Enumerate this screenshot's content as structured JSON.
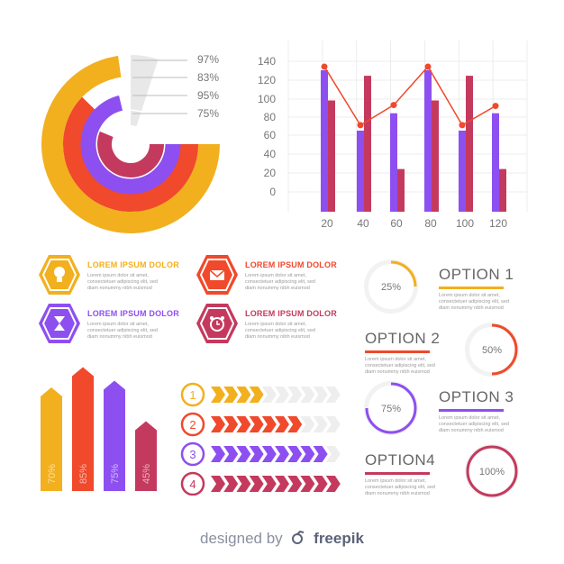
{
  "colors": {
    "yellow": "#f2b01e",
    "red": "#f0492b",
    "purple": "#8e4ff0",
    "maroon": "#c43a5e",
    "grey": "#e8e8e8"
  },
  "radial_chart": {
    "rings": [
      {
        "label": "97%",
        "value": 97,
        "color": "#f2b01e"
      },
      {
        "label": "83%",
        "value": 83,
        "color": "#f0492b"
      },
      {
        "label": "95%",
        "value": 95,
        "color": "#8e4ff0"
      },
      {
        "label": "75%",
        "value": 75,
        "color": "#c43a5e"
      }
    ]
  },
  "chart_data": {
    "type": "bar",
    "categories": [
      "20",
      "40",
      "60",
      "80",
      "100",
      "120"
    ],
    "series": [
      {
        "color": "#8e4ff0",
        "values": [
          133,
          67,
          86,
          133,
          67,
          86
        ]
      },
      {
        "color": "#c43a5e",
        "values": [
          100,
          127,
          25,
          100,
          127,
          25
        ]
      }
    ],
    "line": {
      "color": "#f0492b",
      "values": [
        137,
        73,
        95,
        137,
        73,
        94
      ]
    },
    "yticks": [
      "140",
      "120",
      "100",
      "80",
      "60",
      "40",
      "20",
      "0"
    ],
    "ylim": [
      0,
      150
    ]
  },
  "hex_items": [
    {
      "heading": "LOREM IPSUM DOLOR",
      "icon": "lightbulb-icon",
      "color": "#f2b01e",
      "lines": [
        "Lorem ipsum dolor sit amet,",
        "consectetuer adipiscing elit, sed",
        "diam nonummy nibh euismod"
      ]
    },
    {
      "heading": "LOREM IPSUM DOLOR",
      "icon": "mail-icon",
      "color": "#f0492b",
      "lines": [
        "Lorem ipsum dolor sit amet,",
        "consectetuer adipiscing elit, sed",
        "diam nonummy nibh euismod"
      ]
    },
    {
      "heading": "LOREM IPSUM DOLOR",
      "icon": "hourglass-icon",
      "color": "#8e4ff0",
      "lines": [
        "Lorem ipsum dolor sit amet,",
        "consectetuer adipiscing elit, sed",
        "diam nonummy nibh euismod"
      ]
    },
    {
      "heading": "LOREM IPSUM DOLOR",
      "icon": "alarm-clock-icon",
      "color": "#c43a5e",
      "lines": [
        "Lorem ipsum dolor sit amet,",
        "consectetuer adipiscing elit, sed",
        "diam nonummy nibh euismod"
      ]
    }
  ],
  "arrow_bars": [
    {
      "label": "70%",
      "value": 70,
      "color": "#f2b01e"
    },
    {
      "label": "85%",
      "value": 85,
      "color": "#f0492b"
    },
    {
      "label": "75%",
      "value": 75,
      "color": "#8e4ff0"
    },
    {
      "label": "45%",
      "value": 45,
      "color": "#c43a5e"
    }
  ],
  "steps": [
    {
      "num": "1",
      "filled": 4,
      "color": "#f2b01e"
    },
    {
      "num": "2",
      "filled": 7,
      "color": "#f0492b"
    },
    {
      "num": "3",
      "filled": 9,
      "color": "#8e4ff0"
    },
    {
      "num": "4",
      "filled": 10,
      "color": "#c43a5e"
    }
  ],
  "options": [
    {
      "title": "OPTION 1",
      "pct": "25%",
      "value": 25,
      "color": "#f2b01e",
      "lines": [
        "Lorem ipsum dolor sit amet,",
        "consectetuer adipiscing elit, sed",
        "diam nonummy nibh euismod"
      ]
    },
    {
      "title": "OPTION 2",
      "pct": "50%",
      "value": 50,
      "color": "#f0492b",
      "lines": [
        "Lorem ipsum dolor sit amet,",
        "consectetuer adipiscing elit, sed",
        "diam nonummy nibh euismod"
      ]
    },
    {
      "title": "OPTION 3",
      "pct": "75%",
      "value": 75,
      "color": "#8e4ff0",
      "lines": [
        "Lorem ipsum dolor sit amet,",
        "consectetuer adipiscing elit, sed",
        "diam nonummy nibh euismod"
      ]
    },
    {
      "title": "OPTION4",
      "pct": "100%",
      "value": 100,
      "color": "#c43a5e",
      "lines": [
        "Lorem ipsum dolor sit amet,",
        "consectetuer adipiscing elit, sed",
        "diam nonummy nibh euismod"
      ]
    }
  ],
  "footer": {
    "designed": "designed by",
    "brand": "freepik",
    "logo_icon": "freepik-logo-icon"
  }
}
